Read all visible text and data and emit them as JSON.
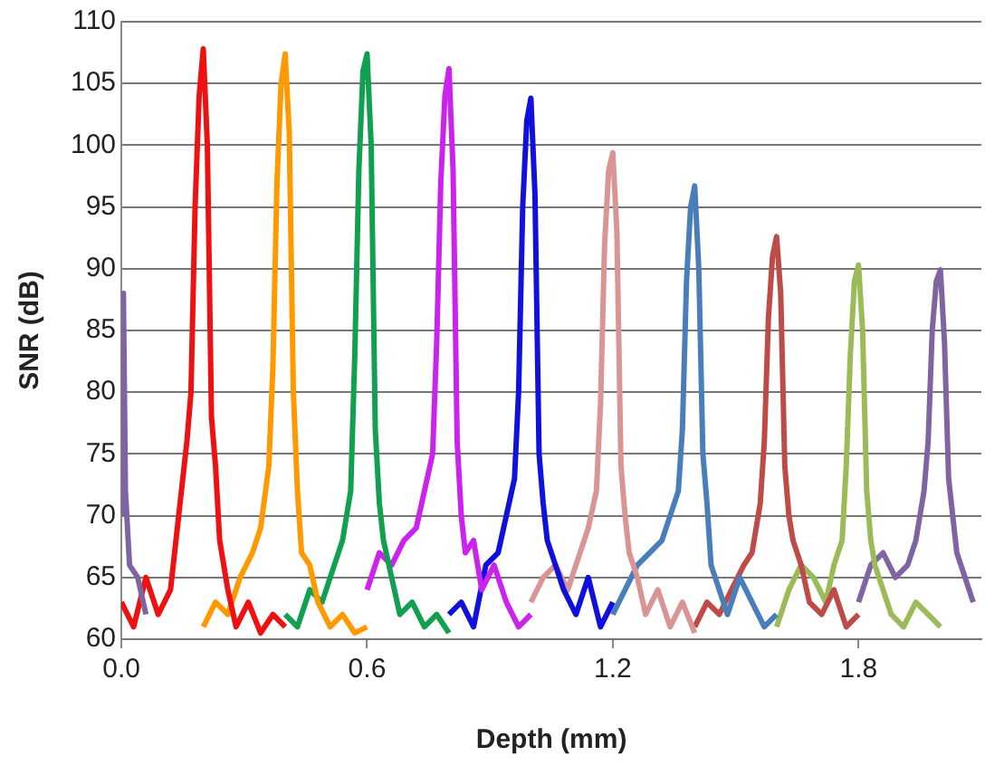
{
  "chart_data": {
    "type": "line",
    "xlabel": "Depth (mm)",
    "ylabel": "SNR (dB)",
    "xlim": [
      0,
      2.1
    ],
    "xticks": [
      {
        "value": 0,
        "label": "0.0"
      },
      0.6,
      1.2,
      1.8
    ],
    "ylim": [
      60,
      110
    ],
    "yticks": [
      60,
      65,
      70,
      75,
      80,
      85,
      90,
      95,
      100,
      105,
      110
    ],
    "grid": "y",
    "legend": false,
    "marker": "none",
    "line_style": "solid",
    "series": [
      {
        "color": "#8064a2",
        "x": [
          0,
          0.005,
          0.01,
          0.02,
          0.04,
          0.06
        ],
        "values": [
          70,
          88,
          72,
          66,
          65,
          62
        ]
      },
      {
        "color": "#ee1111",
        "x": [
          0,
          0.03,
          0.06,
          0.09,
          0.12,
          0.14,
          0.16,
          0.17,
          0.18,
          0.19,
          0.2,
          0.21,
          0.22,
          0.23,
          0.24,
          0.26,
          0.28,
          0.31,
          0.34,
          0.37,
          0.4
        ],
        "values": [
          63,
          61,
          65,
          62,
          64,
          70,
          76,
          80,
          95,
          104,
          107.8,
          100,
          78,
          74,
          68,
          64,
          61,
          63,
          60.5,
          62,
          61
        ]
      },
      {
        "color": "#ff9900",
        "x": [
          0.2,
          0.23,
          0.26,
          0.29,
          0.32,
          0.34,
          0.36,
          0.37,
          0.38,
          0.39,
          0.4,
          0.41,
          0.42,
          0.43,
          0.44,
          0.46,
          0.48,
          0.51,
          0.54,
          0.57,
          0.6
        ],
        "values": [
          61,
          63,
          62,
          65,
          67,
          69,
          74,
          82,
          97,
          105,
          107.4,
          101,
          80,
          72,
          67,
          66,
          63,
          61,
          62,
          60.5,
          61
        ]
      },
      {
        "color": "#11a050",
        "x": [
          0.4,
          0.43,
          0.46,
          0.49,
          0.52,
          0.54,
          0.56,
          0.57,
          0.58,
          0.59,
          0.6,
          0.61,
          0.62,
          0.63,
          0.64,
          0.66,
          0.68,
          0.71,
          0.74,
          0.77,
          0.8
        ],
        "values": [
          62,
          61,
          64,
          63,
          66,
          68,
          72,
          83,
          98,
          106,
          107.4,
          100,
          77,
          71,
          68,
          65,
          62,
          63,
          61,
          62,
          60.5
        ]
      },
      {
        "color": "#cc22ee",
        "x": [
          0.6,
          0.63,
          0.66,
          0.69,
          0.72,
          0.74,
          0.76,
          0.77,
          0.78,
          0.79,
          0.8,
          0.81,
          0.82,
          0.83,
          0.84,
          0.86,
          0.88,
          0.91,
          0.94,
          0.97,
          1.0
        ],
        "values": [
          64,
          67,
          66,
          68,
          69,
          72,
          75,
          84,
          97,
          104,
          106.2,
          98,
          76,
          70,
          67,
          68,
          64,
          66,
          63,
          61,
          62
        ]
      },
      {
        "color": "#1111dd",
        "x": [
          0.8,
          0.83,
          0.86,
          0.89,
          0.92,
          0.94,
          0.96,
          0.97,
          0.98,
          0.99,
          1.0,
          1.01,
          1.02,
          1.03,
          1.04,
          1.06,
          1.08,
          1.11,
          1.14,
          1.17,
          1.2
        ],
        "values": [
          62,
          63,
          61,
          66,
          67,
          70,
          73,
          80,
          95,
          102,
          103.8,
          96,
          75,
          71,
          68,
          66,
          64,
          62,
          65,
          61,
          63
        ]
      },
      {
        "color": "#d99594",
        "x": [
          1.0,
          1.03,
          1.06,
          1.09,
          1.12,
          1.14,
          1.16,
          1.17,
          1.18,
          1.19,
          1.2,
          1.21,
          1.22,
          1.23,
          1.24,
          1.26,
          1.28,
          1.31,
          1.34,
          1.37,
          1.4
        ],
        "values": [
          63,
          65,
          66,
          64,
          67,
          69,
          72,
          79,
          92,
          98,
          99.4,
          93,
          74,
          70,
          67,
          65,
          62,
          64,
          61,
          63,
          60.5
        ]
      },
      {
        "color": "#4a7ebb",
        "x": [
          1.2,
          1.23,
          1.26,
          1.29,
          1.32,
          1.34,
          1.36,
          1.37,
          1.38,
          1.39,
          1.4,
          1.41,
          1.42,
          1.43,
          1.44,
          1.46,
          1.48,
          1.51,
          1.54,
          1.57,
          1.6
        ],
        "values": [
          62,
          64,
          66,
          67,
          68,
          70,
          72,
          77,
          89,
          95,
          96.7,
          90,
          75,
          71,
          66,
          64,
          62,
          65,
          63,
          61,
          62
        ]
      },
      {
        "color": "#be4b48",
        "x": [
          1.4,
          1.43,
          1.46,
          1.49,
          1.52,
          1.54,
          1.56,
          1.57,
          1.58,
          1.59,
          1.6,
          1.61,
          1.62,
          1.63,
          1.64,
          1.66,
          1.68,
          1.71,
          1.74,
          1.77,
          1.8
        ],
        "values": [
          61,
          63,
          62,
          64,
          66,
          67,
          71,
          76,
          86,
          91,
          92.6,
          88,
          74,
          70,
          68,
          66,
          63,
          62,
          64,
          61,
          62
        ]
      },
      {
        "color": "#9bbb59",
        "x": [
          1.6,
          1.63,
          1.66,
          1.69,
          1.72,
          1.74,
          1.76,
          1.77,
          1.78,
          1.79,
          1.8,
          1.81,
          1.82,
          1.83,
          1.84,
          1.86,
          1.88,
          1.91,
          1.94,
          1.97,
          2.0
        ],
        "values": [
          61,
          64,
          66,
          65,
          63,
          66,
          68,
          74,
          83,
          89,
          90.3,
          85,
          72,
          68,
          66,
          64,
          62,
          61,
          63,
          62,
          61
        ]
      },
      {
        "color": "#8064a2",
        "x": [
          1.8,
          1.83,
          1.86,
          1.89,
          1.92,
          1.94,
          1.96,
          1.97,
          1.98,
          1.99,
          2.0,
          2.01,
          2.02,
          2.03,
          2.04,
          2.06,
          2.08
        ],
        "values": [
          63,
          66,
          67,
          65,
          66,
          68,
          72,
          76,
          85,
          89,
          89.9,
          84,
          73,
          70,
          67,
          65,
          63
        ]
      }
    ]
  }
}
